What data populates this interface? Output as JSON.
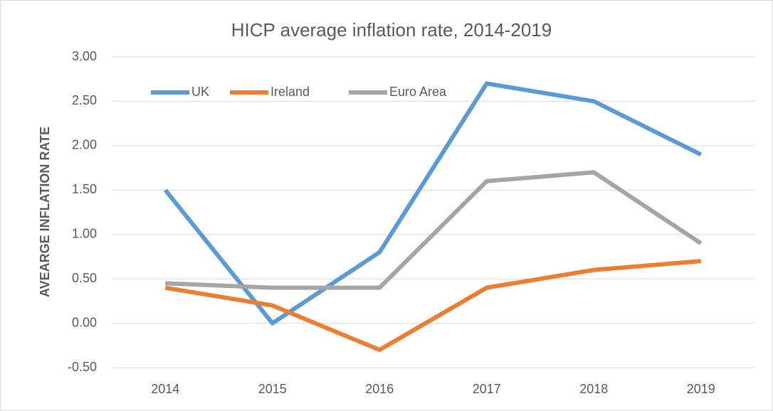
{
  "chart_data": {
    "type": "line",
    "title": "HICP average inflation rate,  2014-2019",
    "y_label": "AVEARGE INFLATION  RATE",
    "categories": [
      "2014",
      "2015",
      "2016",
      "2017",
      "2018",
      "2019"
    ],
    "series": [
      {
        "name": "UK",
        "color": "#5b9bd5",
        "values": [
          1.5,
          0.0,
          0.8,
          2.7,
          2.5,
          1.9
        ]
      },
      {
        "name": "Ireland",
        "color": "#ed7d31",
        "values": [
          0.4,
          0.2,
          -0.3,
          0.4,
          0.6,
          0.7
        ]
      },
      {
        "name": "Euro Area",
        "color": "#a5a5a5",
        "values": [
          0.45,
          0.4,
          0.4,
          1.6,
          1.7,
          0.9
        ]
      }
    ],
    "ylim": [
      -0.5,
      3.0
    ],
    "yticks": [
      {
        "value": -0.5,
        "label": "-0.50"
      },
      {
        "value": 0,
        "label": "0.00"
      },
      {
        "value": 0.5,
        "label": "0.50"
      },
      {
        "value": 1,
        "label": "1.00"
      },
      {
        "value": 1.5,
        "label": "1.50"
      },
      {
        "value": 2,
        "label": "2.00"
      },
      {
        "value": 2.5,
        "label": "2.50"
      },
      {
        "value": 3,
        "label": "3.00"
      }
    ],
    "grid": true,
    "legend": "top-left"
  }
}
